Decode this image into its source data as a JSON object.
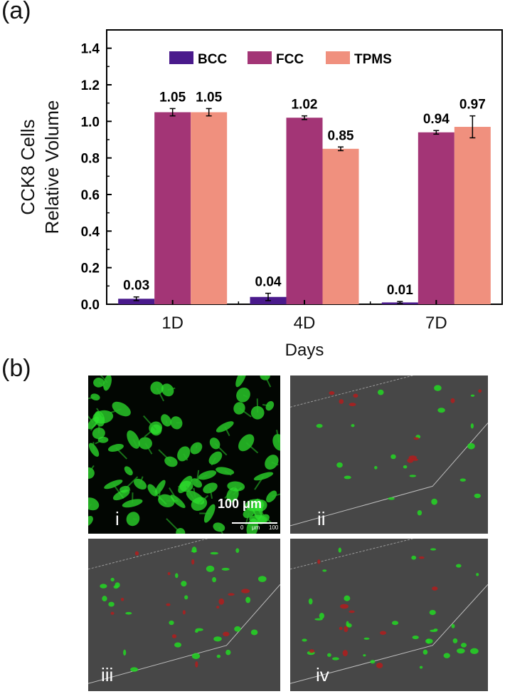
{
  "panel_a_label": "(a)",
  "panel_b_label": "(b)",
  "chart_data": {
    "type": "bar",
    "categories": [
      "1D",
      "4D",
      "7D"
    ],
    "series": [
      {
        "name": "BCC",
        "color": "#4a1a8c",
        "values": [
          0.03,
          0.04,
          0.01
        ],
        "errors": [
          0.01,
          0.02,
          0.005
        ]
      },
      {
        "name": "FCC",
        "color": "#a33576",
        "values": [
          1.05,
          1.02,
          0.94
        ],
        "errors": [
          0.02,
          0.01,
          0.01
        ]
      },
      {
        "name": "TPMS",
        "color": "#f0907e",
        "values": [
          1.05,
          0.85,
          0.97
        ],
        "errors": [
          0.02,
          0.01,
          0.06
        ]
      }
    ],
    "data_labels": [
      [
        "0.03",
        "0.04",
        "0.01"
      ],
      [
        "1.05",
        "1.02",
        "0.94"
      ],
      [
        "1.05",
        "0.85",
        "0.97"
      ]
    ],
    "xlabel": "Days",
    "ylabel_line1": "CCK8 Cells",
    "ylabel_line2": "Relative Volume",
    "ylim": [
      0,
      1.5
    ],
    "yticks": [
      "0.0",
      "0.2",
      "0.4",
      "0.6",
      "0.8",
      "1.0",
      "1.2",
      "1.4"
    ],
    "legend_position": "top",
    "grid": false
  },
  "micrographs": [
    {
      "label": "i",
      "scale_bar_text": "100 μm",
      "scale_ticks": [
        "0",
        "μm",
        "100"
      ]
    },
    {
      "label": "ii"
    },
    {
      "label": "iii"
    },
    {
      "label": "iv"
    }
  ]
}
